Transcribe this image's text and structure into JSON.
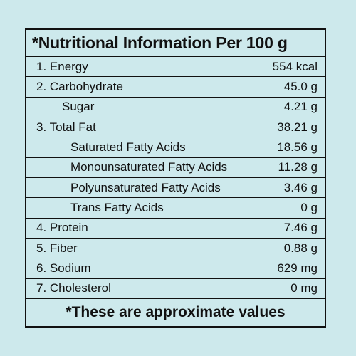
{
  "title": "*Nutritional Information Per 100 g",
  "rows": [
    {
      "label": "1. Energy",
      "value": "554 kcal",
      "level": 0
    },
    {
      "label": "2. Carbohydrate",
      "value": "45.0 g",
      "level": 0
    },
    {
      "label": "Sugar",
      "value": "4.21 g",
      "level": 1
    },
    {
      "label": "3. Total Fat",
      "value": "38.21 g",
      "level": 0
    },
    {
      "label": "Saturated Fatty Acids",
      "value": "18.56 g",
      "level": 2
    },
    {
      "label": "Monounsaturated Fatty Acids",
      "value": "11.28 g",
      "level": 2
    },
    {
      "label": "Polyunsaturated Fatty Acids",
      "value": "3.46 g",
      "level": 2
    },
    {
      "label": "Trans Fatty Acids",
      "value": "0 g",
      "level": 2
    },
    {
      "label": "4. Protein",
      "value": "7.46 g",
      "level": 0
    },
    {
      "label": "5. Fiber",
      "value": "0.88 g",
      "level": 0
    },
    {
      "label": "6. Sodium",
      "value": "629 mg",
      "level": 0
    },
    {
      "label": "7. Cholesterol",
      "value": "0 mg",
      "level": 0
    }
  ],
  "footer": "*These are approximate values",
  "colors": {
    "background": "#cde9ec",
    "text": "#111111"
  }
}
